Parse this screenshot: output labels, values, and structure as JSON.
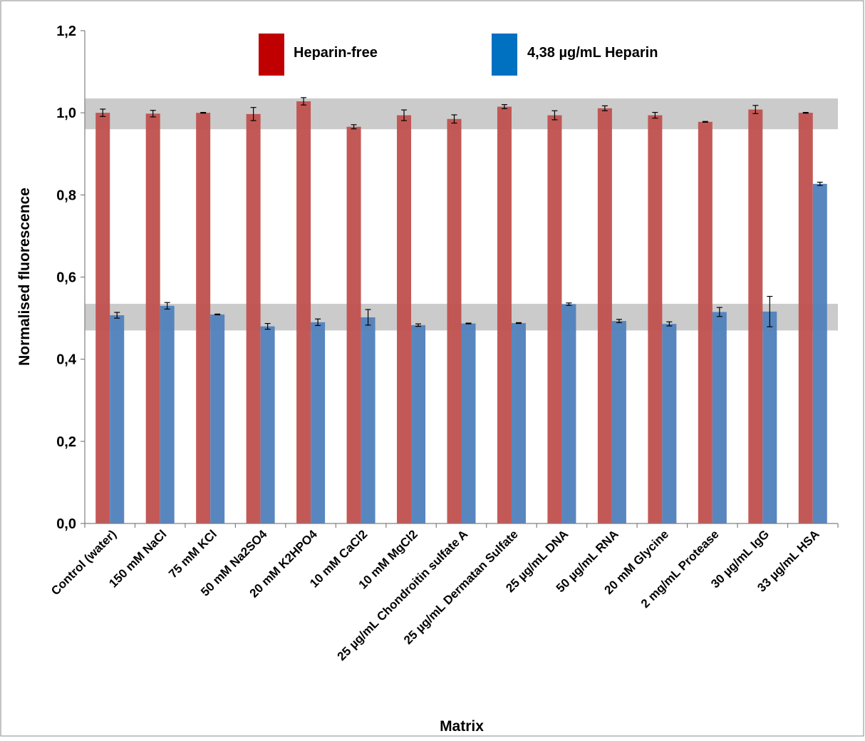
{
  "chart_data": {
    "type": "bar",
    "title": "",
    "xlabel": "Matrix",
    "ylabel": "Normalised  fluorescence",
    "ylim": [
      0,
      1.2
    ],
    "yticks": [
      "0,0",
      "0,2",
      "0,4",
      "0,6",
      "0,8",
      "1,0",
      "1,2"
    ],
    "ytick_values": [
      0,
      0.2,
      0.4,
      0.6,
      0.8,
      1.0,
      1.2
    ],
    "grid": false,
    "legend_position": "top",
    "categories": [
      "Control (water)",
      "150 mM NaCl",
      "75 mM KCl",
      "50 mM Na2SO4",
      "20 mM K2HPO4",
      "10 mM CaCl2",
      "10 mM MgCl2",
      "25 µg/mL Chondroitin sulfate A",
      "25 µg/mL Dermatan Sulfate",
      "25 µg/mL DNA",
      "50 µg/mL RNA",
      "20 mM Glycine",
      "2 mg/mL Protease",
      "30 µg/mL IgG",
      "33 µg/mL HSA"
    ],
    "series": [
      {
        "name": "Heparin-free",
        "color": "#c0504d",
        "legend_color": "#c00000",
        "values": [
          1.0,
          0.998,
          1.0,
          0.997,
          1.028,
          0.966,
          0.994,
          0.985,
          1.015,
          0.994,
          1.011,
          0.994,
          0.978,
          1.008,
          1.0
        ],
        "errors": [
          0.009,
          0.008,
          0.001,
          0.016,
          0.009,
          0.005,
          0.013,
          0.01,
          0.005,
          0.011,
          0.006,
          0.007,
          0.001,
          0.01,
          0.001
        ]
      },
      {
        "name": "4,38 µg/mL Heparin",
        "color": "#4f81bd",
        "legend_color": "#0070c0",
        "values": [
          0.507,
          0.53,
          0.509,
          0.48,
          0.49,
          0.502,
          0.483,
          0.487,
          0.488,
          0.534,
          0.493,
          0.486,
          0.515,
          0.516,
          0.827
        ],
        "errors": [
          0.007,
          0.008,
          0.001,
          0.007,
          0.008,
          0.019,
          0.003,
          0.001,
          0.001,
          0.003,
          0.004,
          0.005,
          0.011,
          0.037,
          0.004
        ]
      }
    ],
    "bands": [
      {
        "y_min": 0.96,
        "y_max": 1.035,
        "color": "#c8c8c8"
      },
      {
        "y_min": 0.47,
        "y_max": 0.535,
        "color": "#c8c8c8"
      }
    ]
  }
}
